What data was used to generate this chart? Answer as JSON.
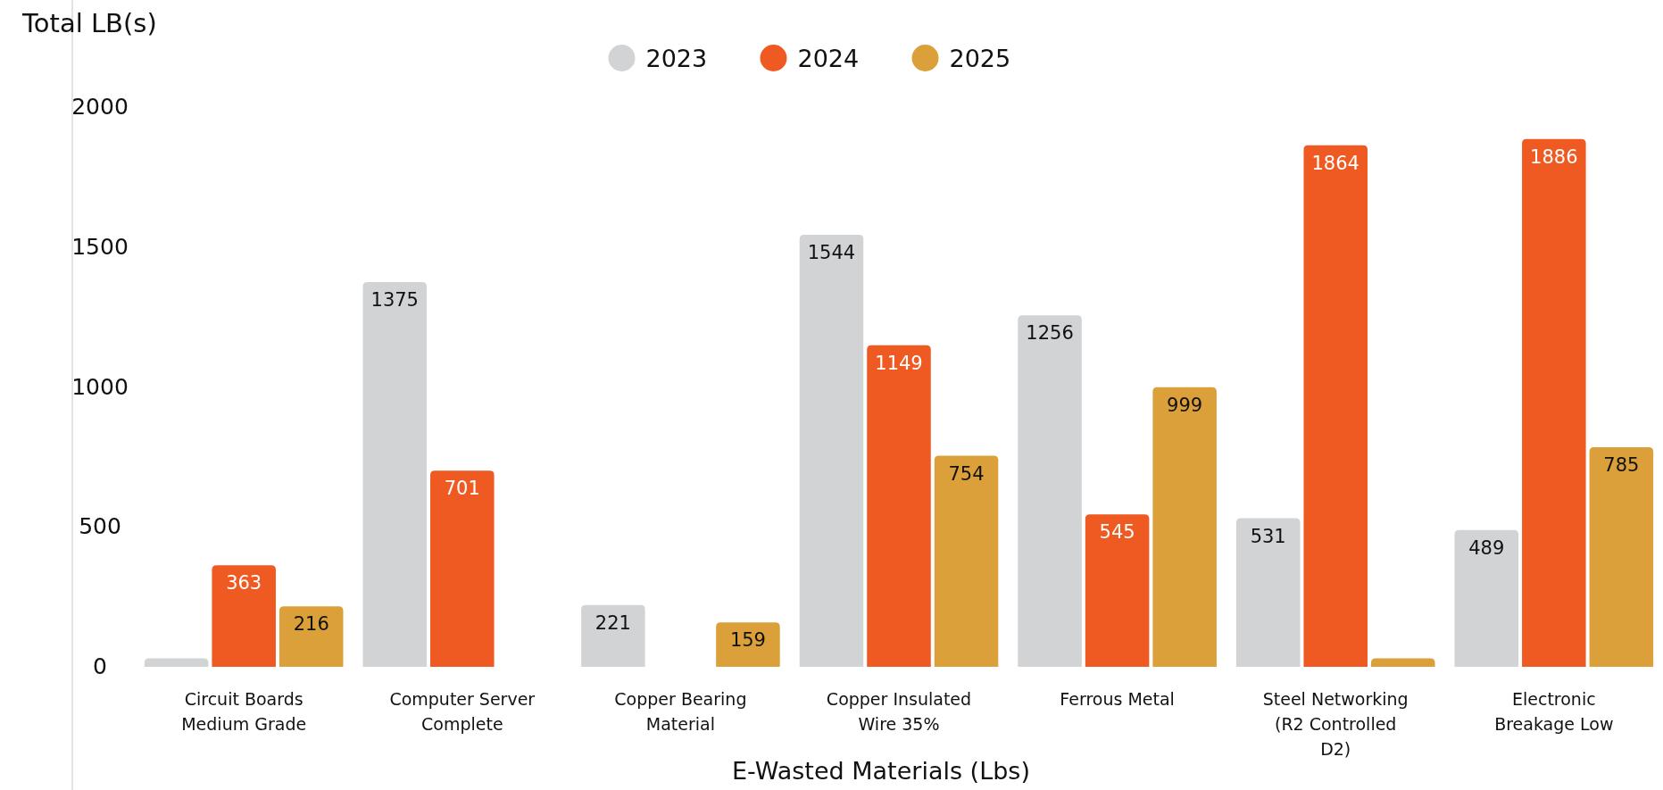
{
  "chart_data": {
    "type": "bar",
    "ylabel": "Total LB(s)",
    "xlabel": "E-Wasted Materials (Lbs)",
    "categories": [
      "Circuit Boards Medium Grade",
      "Computer Server Complete",
      "Copper Bearing Material",
      "Copper Insulated Wire 35%",
      "Ferrous Metal",
      "Steel Networking (R2 Controlled D2)",
      "Electronic Breakage Low"
    ],
    "series": [
      {
        "name": "2023",
        "color": "#d1d3d5",
        "values": [
          30,
          1375,
          221,
          1544,
          1256,
          531,
          489
        ],
        "value_labels": [
          null,
          "1375",
          "221",
          "1544",
          "1256",
          "531",
          "489"
        ]
      },
      {
        "name": "2024",
        "color": "#ef5a23",
        "values": [
          363,
          701,
          null,
          1149,
          545,
          1864,
          1886
        ],
        "value_labels": [
          "363",
          "701",
          null,
          "1149",
          "545",
          "1864",
          "1886"
        ]
      },
      {
        "name": "2025",
        "color": "#dba039",
        "values": [
          216,
          null,
          159,
          754,
          999,
          30,
          785
        ],
        "value_labels": [
          "216",
          null,
          "159",
          "754",
          "999",
          null,
          "785"
        ]
      }
    ],
    "ylim": [
      0,
      2000
    ],
    "yticks": [
      0,
      500,
      1000,
      1500,
      2000
    ],
    "legend": "top"
  }
}
